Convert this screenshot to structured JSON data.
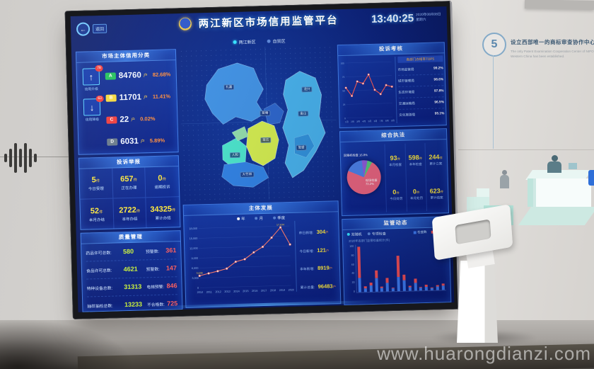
{
  "watermark": "www.huarongdianzi.com",
  "wall": {
    "step_number": "5",
    "step_title_zh": "设立西部唯一的商标审查协作中心。",
    "step_title_en": "The only Patent Examination Cooperation Center of NIPO in Western China has been established."
  },
  "icons": {
    "back_arrow": "←",
    "up_arrow": "↑",
    "down_arrow": "↓"
  },
  "dashboard": {
    "back_label": "返回",
    "title": "两江新区市场信用监管平台",
    "clock": {
      "time": "13:40:25",
      "date": "2020年08月08日",
      "week": "星期六"
    },
    "map_tabs": [
      {
        "label": "两江新区"
      },
      {
        "label": "自贸区"
      }
    ],
    "map_labels": [
      "礼嘉",
      "翠云",
      "人和",
      "鸳鸯",
      "大竹林",
      "金山",
      "复盛",
      "龙兴"
    ],
    "credit_panel": {
      "title": "市场主体信用分类",
      "up_label": "信用升级",
      "up_badge": "78",
      "down_label": "信用降级",
      "down_badge": "63",
      "rows": [
        {
          "grade": "A",
          "count": "84760",
          "unit": "户",
          "pct": "82.68%",
          "color": "#21c25a"
        },
        {
          "grade": "B",
          "count": "11701",
          "unit": "户",
          "pct": "11.41%",
          "color": "#f5d93c"
        },
        {
          "grade": "C",
          "count": "22",
          "unit": "户",
          "pct": "0.02%",
          "color": "#f03b3b"
        },
        {
          "grade": "D",
          "count": "6031",
          "unit": "户",
          "pct": "5.89%",
          "color": "#67788a"
        }
      ]
    },
    "complaints_panel": {
      "title": "投诉举报",
      "stats": [
        {
          "value": "5",
          "unit": "件",
          "label": "今日受理"
        },
        {
          "value": "657",
          "unit": "件",
          "label": "正在办理"
        },
        {
          "value": "0",
          "unit": "件",
          "label": "逾期投诉"
        },
        {
          "value": "52",
          "unit": "件",
          "label": "本月办结"
        },
        {
          "value": "2722",
          "unit": "件",
          "label": "本年办结"
        },
        {
          "value": "34325",
          "unit": "件",
          "label": "累计办结"
        }
      ]
    },
    "quality_panel": {
      "title": "质量管理",
      "rows": [
        {
          "label": "药品许可总数:",
          "value": "580",
          "label2": "预警数:",
          "value2": "361"
        },
        {
          "label": "食品许可总数:",
          "value": "4621",
          "label2": "预警数:",
          "value2": "147"
        },
        {
          "label": "特种设备总数:",
          "value": "31313",
          "label2": "电梯预警:",
          "value2": "846"
        },
        {
          "label": "抽样抽检总数:",
          "value": "13233",
          "label2": "不合格数:",
          "value2": "725"
        }
      ]
    },
    "development_panel": {
      "title": "主体发展",
      "modes": [
        {
          "label": "年"
        },
        {
          "label": "月"
        },
        {
          "label": "季度"
        }
      ],
      "stats": [
        {
          "label": "昨日新增:",
          "value": "304",
          "unit": "户"
        },
        {
          "label": "今日新增:",
          "value": "121",
          "unit": "户"
        },
        {
          "label": "本年新增:",
          "value": "8919",
          "unit": "户"
        },
        {
          "label": "累计总量:",
          "value": "96483",
          "unit": "户"
        }
      ]
    },
    "trend_panel": {
      "title": "投诉考核",
      "list_header": "各部门办结率TOP5",
      "rows": [
        {
          "label": "市场监管局",
          "value": "99.2%"
        },
        {
          "label": "城市管理局",
          "value": "98.6%"
        },
        {
          "label": "生态环境局",
          "value": "97.8%"
        },
        {
          "label": "交通运输局",
          "value": "96.5%"
        },
        {
          "label": "文化旅游局",
          "value": "95.1%"
        }
      ]
    },
    "enforcement_panel": {
      "title": "综合执法",
      "stats": [
        {
          "value": "93",
          "unit": "件",
          "label": "本月检查"
        },
        {
          "value": "598",
          "unit": "件",
          "label": "本年检查"
        },
        {
          "value": "244",
          "unit": "件",
          "label": "累计立案"
        },
        {
          "value": "0",
          "unit": "件",
          "label": "今日处罚"
        },
        {
          "value": "0",
          "unit": "件",
          "label": "本月处罚"
        },
        {
          "value": "623",
          "unit": "件",
          "label": "累计结案"
        }
      ]
    },
    "supervision_panel": {
      "title": "监管动态",
      "options": [
        {
          "label": "双随机"
        },
        {
          "label": "专项检查"
        }
      ],
      "note": "2020年各部门监管检查统计(件)",
      "legend": [
        {
          "label": "检查数",
          "color": "#3d7bf0"
        },
        {
          "label": "问题数",
          "color": "#f04e55"
        }
      ]
    }
  },
  "chart_data": [
    {
      "type": "line",
      "title": "主体发展",
      "x": [
        "2010",
        "2011",
        "2012",
        "2013",
        "2014",
        "2015",
        "2016",
        "2017",
        "2018",
        "2019",
        "2020"
      ],
      "values": [
        3638,
        4300,
        4900,
        5600,
        7600,
        8300,
        10300,
        11900,
        14600,
        17634,
        12400
      ],
      "ylim": [
        0,
        18000
      ],
      "yticks": [
        0,
        3000,
        6000,
        9000,
        12000,
        15000,
        18000
      ],
      "point_labels": {
        "0": "3,638",
        "9": "17,634"
      },
      "color": "#ff7a6b",
      "xlabel": "年份",
      "ylabel": "户数",
      "legend_position": "top"
    },
    {
      "type": "line",
      "title": "投诉考核",
      "x": [
        "1月",
        "2月",
        "3月",
        "4月",
        "5月",
        "6月",
        "7月",
        "8月",
        "9月"
      ],
      "values": [
        55,
        40,
        66,
        62,
        78,
        50,
        42,
        58,
        55
      ],
      "ylim": [
        0,
        100
      ],
      "yticks": [
        0,
        25,
        50,
        75,
        100
      ],
      "color": "#ff5a52",
      "xlabel": "月份",
      "ylabel": ""
    },
    {
      "type": "pie",
      "title": "综合执法",
      "slices": [
        {
          "label": "现场检查",
          "value": 73.2,
          "color": "#e8637e"
        },
        {
          "label": "双随机检查",
          "value": 16.8,
          "color": "#4a80e8"
        },
        {
          "label": "专项检查",
          "value": 5.4,
          "color": "#8e5bd8"
        },
        {
          "label": "其他",
          "value": 4.6,
          "color": "#54c878"
        }
      ]
    },
    {
      "type": "bar",
      "title": "监管动态",
      "stacked": true,
      "categories": [
        "1",
        "2",
        "3",
        "4",
        "5",
        "6",
        "7",
        "8",
        "9",
        "10",
        "11",
        "12",
        "13",
        "14",
        "15",
        "16"
      ],
      "series": [
        {
          "name": "检查数",
          "color": "#3d7bf0",
          "values": [
            30,
            8,
            14,
            28,
            7,
            18,
            6,
            30,
            22,
            7,
            16,
            6,
            8,
            4,
            7,
            9
          ]
        },
        {
          "name": "问题数",
          "color": "#f04e55",
          "values": [
            65,
            4,
            6,
            17,
            3,
            10,
            2,
            45,
            13,
            3,
            9,
            2,
            4,
            2,
            3,
            5
          ]
        }
      ],
      "ylim": [
        0,
        100
      ]
    }
  ]
}
